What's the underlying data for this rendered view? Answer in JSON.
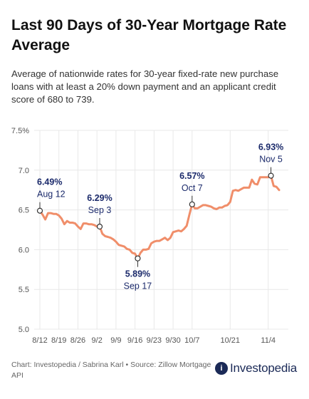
{
  "header": {
    "title": "Last 90 Days of 30-Year Mortgage Rate Average",
    "subtitle": "Average of nationwide rates for 30-year fixed-rate new purchase loans with at least a 20% down payment and an applicant credit score of 680 to 739."
  },
  "footer": {
    "source": "Chart: Investopedia / Sabrina Karl • Source: Zillow Mortgage API",
    "logo_mark": "i",
    "logo_text": "Investopedia"
  },
  "colors": {
    "line": "#f08e6a",
    "annotation_value": "#1b2a6b",
    "annotation_date": "#1b2a6b",
    "grid": "#e8e8e8",
    "tick": "#555555"
  },
  "chart_data": {
    "type": "line",
    "title": "Last 90 Days of 30-Year Mortgage Rate Average",
    "xlabel": "",
    "ylabel": "",
    "ylim": [
      5.0,
      7.5
    ],
    "y_ticks": [
      "5.0",
      "5.5",
      "6.0",
      "6.5",
      "7.0",
      "7.5%"
    ],
    "y_tick_values": [
      5.0,
      5.5,
      6.0,
      6.5,
      7.0,
      7.5
    ],
    "x_ticks": [
      "8/12",
      "8/19",
      "8/26",
      "9/2",
      "9/9",
      "9/16",
      "9/23",
      "9/30",
      "10/7",
      "10/21",
      "11/4"
    ],
    "x_tick_values": [
      "2024-08-12",
      "2024-08-19",
      "2024-08-26",
      "2024-09-02",
      "2024-09-09",
      "2024-09-16",
      "2024-09-23",
      "2024-09-30",
      "2024-10-07",
      "2024-10-21",
      "2024-11-04"
    ],
    "grid": true,
    "legend": "none",
    "series": [
      {
        "x": [
          "2024-08-12",
          "2024-08-13",
          "2024-08-14",
          "2024-08-15",
          "2024-08-16",
          "2024-08-17",
          "2024-08-18",
          "2024-08-19",
          "2024-08-20",
          "2024-08-21",
          "2024-08-22",
          "2024-08-23",
          "2024-08-24",
          "2024-08-25",
          "2024-08-26",
          "2024-08-27",
          "2024-08-28",
          "2024-08-29",
          "2024-08-30",
          "2024-08-31",
          "2024-09-01",
          "2024-09-02",
          "2024-09-03",
          "2024-09-04",
          "2024-09-05",
          "2024-09-06",
          "2024-09-07",
          "2024-09-08",
          "2024-09-09",
          "2024-09-10",
          "2024-09-11",
          "2024-09-12",
          "2024-09-13",
          "2024-09-14",
          "2024-09-15",
          "2024-09-16",
          "2024-09-17",
          "2024-09-18",
          "2024-09-19",
          "2024-09-20",
          "2024-09-21",
          "2024-09-22",
          "2024-09-23",
          "2024-09-24",
          "2024-09-25",
          "2024-09-26",
          "2024-09-27",
          "2024-09-28",
          "2024-09-29",
          "2024-09-30",
          "2024-10-01",
          "2024-10-02",
          "2024-10-03",
          "2024-10-04",
          "2024-10-05",
          "2024-10-06",
          "2024-10-07",
          "2024-10-08",
          "2024-10-09",
          "2024-10-10",
          "2024-10-11",
          "2024-10-12",
          "2024-10-13",
          "2024-10-14",
          "2024-10-15",
          "2024-10-16",
          "2024-10-17",
          "2024-10-18",
          "2024-10-19",
          "2024-10-20",
          "2024-10-21",
          "2024-10-22",
          "2024-10-23",
          "2024-10-24",
          "2024-10-25",
          "2024-10-26",
          "2024-10-27",
          "2024-10-28",
          "2024-10-29",
          "2024-10-30",
          "2024-10-31",
          "2024-11-01",
          "2024-11-02",
          "2024-11-03",
          "2024-11-04",
          "2024-11-05",
          "2024-11-06",
          "2024-11-07",
          "2024-11-08"
        ],
        "values": [
          6.49,
          6.44,
          6.38,
          6.46,
          6.46,
          6.45,
          6.45,
          6.43,
          6.39,
          6.32,
          6.36,
          6.34,
          6.34,
          6.33,
          6.29,
          6.26,
          6.33,
          6.33,
          6.32,
          6.32,
          6.31,
          6.29,
          6.29,
          6.2,
          6.17,
          6.16,
          6.15,
          6.13,
          6.1,
          6.06,
          6.05,
          6.04,
          6.01,
          6.0,
          5.96,
          5.95,
          5.89,
          5.96,
          6.0,
          6.0,
          6.01,
          6.08,
          6.1,
          6.11,
          6.11,
          6.13,
          6.15,
          6.12,
          6.15,
          6.22,
          6.23,
          6.24,
          6.23,
          6.26,
          6.3,
          6.44,
          6.57,
          6.52,
          6.52,
          6.54,
          6.56,
          6.56,
          6.55,
          6.54,
          6.52,
          6.51,
          6.53,
          6.53,
          6.55,
          6.56,
          6.6,
          6.74,
          6.75,
          6.74,
          6.76,
          6.78,
          6.78,
          6.78,
          6.88,
          6.83,
          6.82,
          6.91,
          6.91,
          6.91,
          6.91,
          6.93,
          6.8,
          6.79,
          6.75
        ]
      }
    ],
    "annotations": [
      {
        "x": "2024-08-12",
        "y": 6.49,
        "value_label": "6.49%",
        "date_label": "Aug 12",
        "position": "above"
      },
      {
        "x": "2024-09-03",
        "y": 6.29,
        "value_label": "6.29%",
        "date_label": "Sep 3",
        "position": "above"
      },
      {
        "x": "2024-09-17",
        "y": 5.89,
        "value_label": "5.89%",
        "date_label": "Sep 17",
        "position": "below"
      },
      {
        "x": "2024-10-07",
        "y": 6.57,
        "value_label": "6.57%",
        "date_label": "Oct 7",
        "position": "above"
      },
      {
        "x": "2024-11-05",
        "y": 6.93,
        "value_label": "6.93%",
        "date_label": "Nov 5",
        "position": "above"
      }
    ]
  }
}
